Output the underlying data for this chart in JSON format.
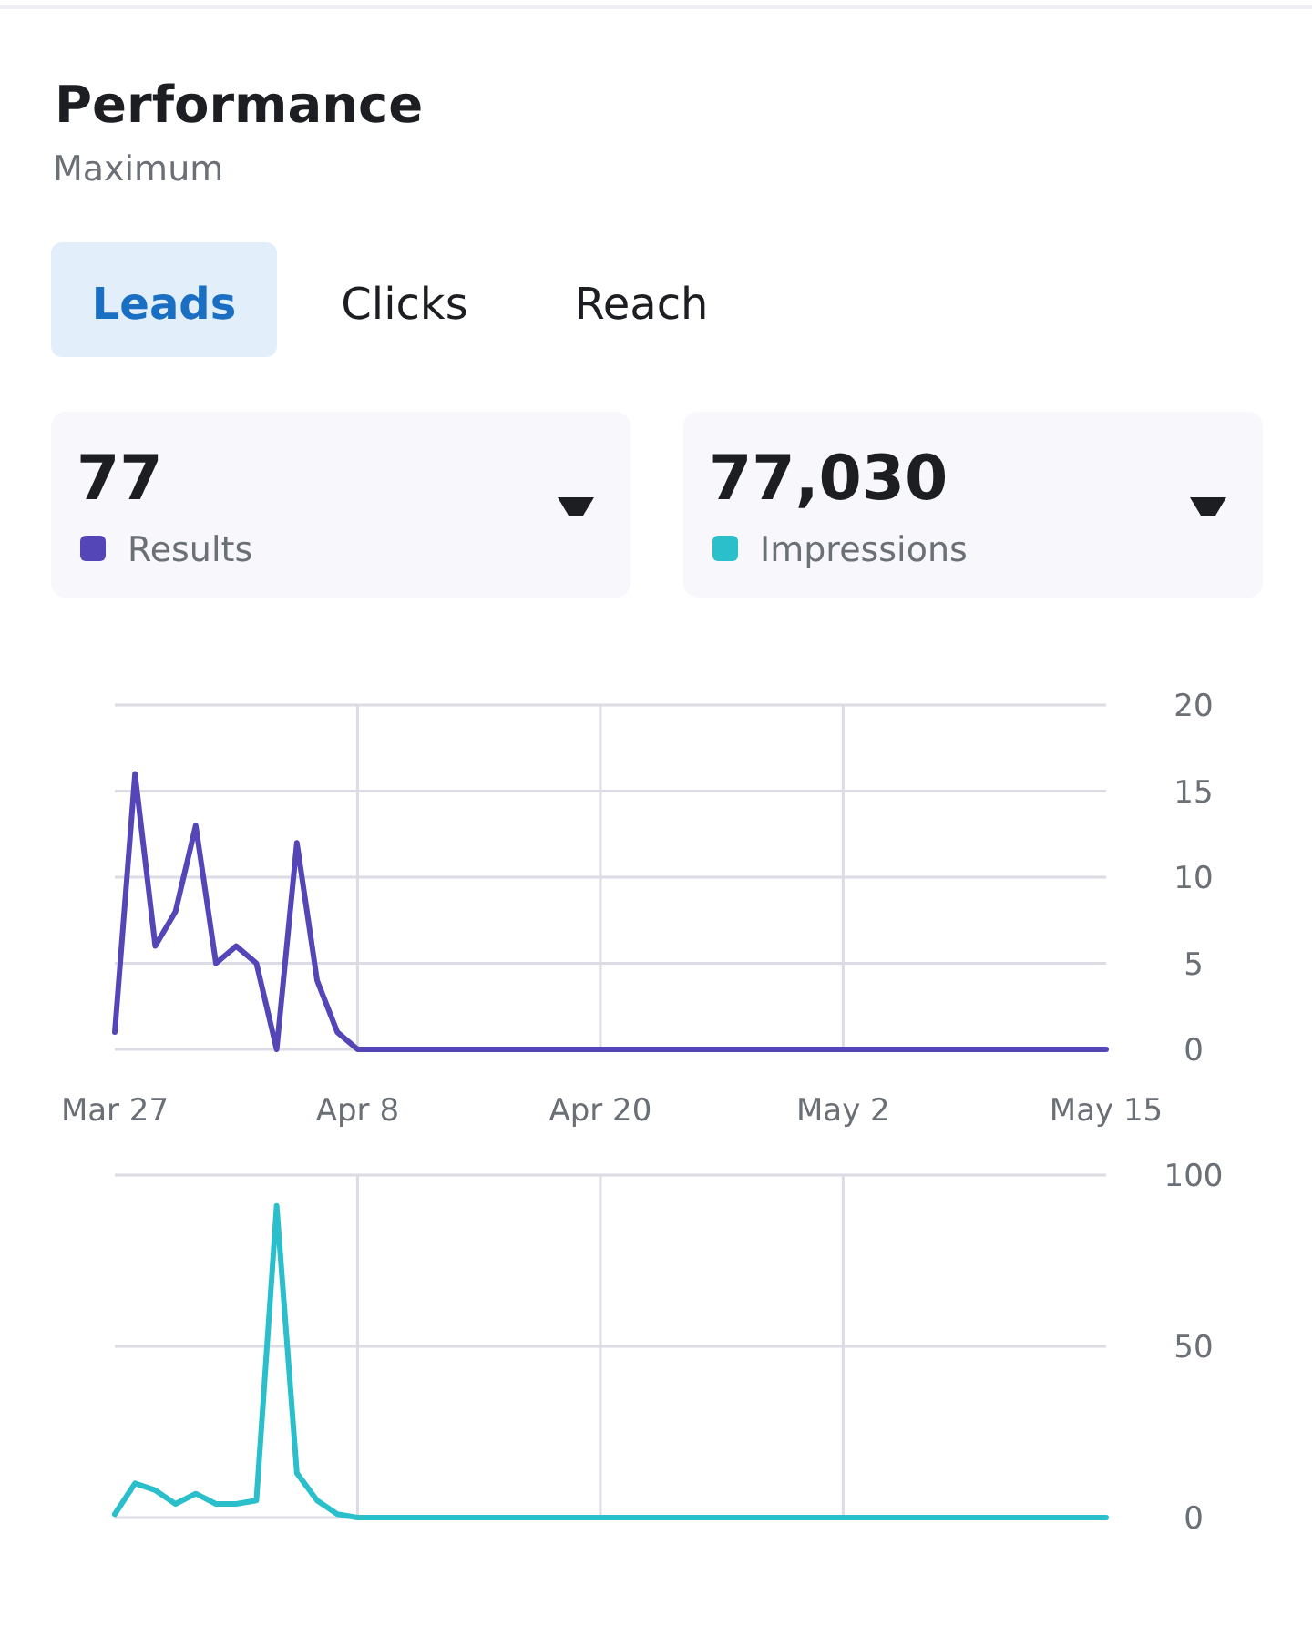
{
  "chart_data": [
    {
      "type": "other",
      "title": "Performance",
      "subtitle": "Maximum",
      "annotations": [
        "Leads",
        "Clicks",
        "Reach"
      ]
    },
    {
      "type": "line",
      "annotations": [
        "77"
      ],
      "legend": "top left",
      "grid": true,
      "xlim": [
        "--03-27",
        "--05-15"
      ],
      "xticks": [
        {
          "value": "--03-27",
          "label": "Mar 27"
        },
        {
          "value": "--04-08",
          "label": "Apr 8"
        },
        {
          "value": "--04-20",
          "label": "Apr 20"
        },
        {
          "value": "--05-02",
          "label": "May 2"
        },
        {
          "value": "--05-15",
          "label": "May 15"
        }
      ],
      "ylim": [
        0,
        20
      ],
      "yticks": [
        0,
        5,
        10,
        15,
        20
      ],
      "x": [
        "--03-27",
        "--03-28",
        "--03-29",
        "--03-30",
        "--03-31",
        "--04-01",
        "--04-02",
        "--04-03",
        "--04-04",
        "--04-05",
        "--04-06",
        "--04-07",
        "--04-08",
        "--05-15"
      ],
      "series": [
        {
          "name": "Results",
          "color": "#5546b8",
          "values": [
            1,
            16,
            6,
            8,
            13,
            5,
            6,
            5,
            0,
            12,
            4,
            1,
            0,
            0
          ]
        }
      ]
    },
    {
      "type": "line",
      "annotations": [
        "77,030"
      ],
      "legend": "top right",
      "grid": true,
      "tick_labels": "y",
      "xlim": [
        "--03-27",
        "--05-15"
      ],
      "xticks": [
        {
          "value": "--04-08",
          "label": null
        },
        {
          "value": "--04-20",
          "label": null
        },
        {
          "value": "--05-02",
          "label": null
        }
      ],
      "ylim": [
        0,
        100
      ],
      "yticks": [
        0,
        50,
        100
      ],
      "x": [
        "--03-27",
        "--03-28",
        "--03-29",
        "--03-30",
        "--03-31",
        "--04-01",
        "--04-02",
        "--04-03",
        "--04-04",
        "--04-05",
        "--04-06",
        "--04-07",
        "--04-08",
        "--05-15"
      ],
      "series": [
        {
          "name": "Impressions",
          "color": "#2bbfcc",
          "values": [
            1,
            10,
            8,
            4,
            7,
            4,
            4,
            5,
            91,
            13,
            5,
            1,
            0,
            0
          ]
        }
      ]
    }
  ]
}
